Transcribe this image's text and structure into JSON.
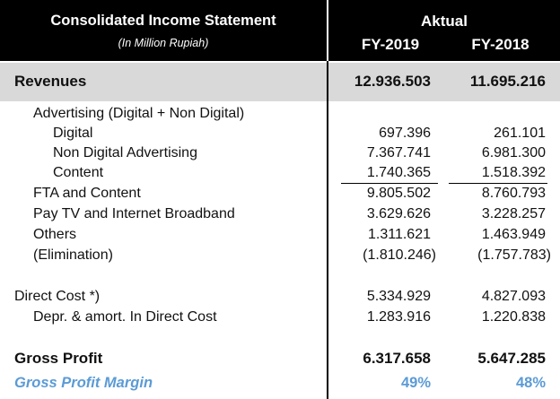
{
  "header": {
    "title": "Consolidated Income Statement",
    "subtitle": "(In Million Rupiah)",
    "group_label": "Aktual",
    "col1": "FY-2019",
    "col2": "FY-2018"
  },
  "rows": {
    "revenues": {
      "label": "Revenues",
      "v2019": "12.936.503",
      "v2018": "11.695.216"
    },
    "advertising": {
      "label": "Advertising (Digital + Non Digital)"
    },
    "digital": {
      "label": "Digital",
      "v2019": "697.396",
      "v2018": "261.101"
    },
    "non_digital": {
      "label": "Non Digital Advertising",
      "v2019": "7.367.741",
      "v2018": "6.981.300"
    },
    "content": {
      "label": "Content",
      "v2019": "1.740.365",
      "v2018": "1.518.392"
    },
    "fta": {
      "label": "FTA and Content",
      "v2019": "9.805.502",
      "v2018": "8.760.793"
    },
    "paytv": {
      "label": "Pay TV and Internet Broadband",
      "v2019": "3.629.626",
      "v2018": "3.228.257"
    },
    "others": {
      "label": "Others",
      "v2019": "1.311.621",
      "v2018": "1.463.949"
    },
    "elimination": {
      "label": "(Elimination)",
      "v2019": "(1.810.246)",
      "v2018": "(1.757.783)"
    },
    "direct_cost": {
      "label": "Direct Cost *)",
      "v2019": "5.334.929",
      "v2018": "4.827.093"
    },
    "depr": {
      "label": "Depr. & amort. In Direct Cost",
      "v2019": "1.283.916",
      "v2018": "1.220.838"
    },
    "gross_profit": {
      "label": "Gross Profit",
      "v2019": "6.317.658",
      "v2018": "5.647.285"
    },
    "gpm": {
      "label": "Gross Profit Margin",
      "v2019": "49%",
      "v2018": "48%"
    }
  },
  "colors": {
    "header_bg": "#000000",
    "band_bg": "#d9d9d9",
    "accent": "#5b9bd5"
  }
}
